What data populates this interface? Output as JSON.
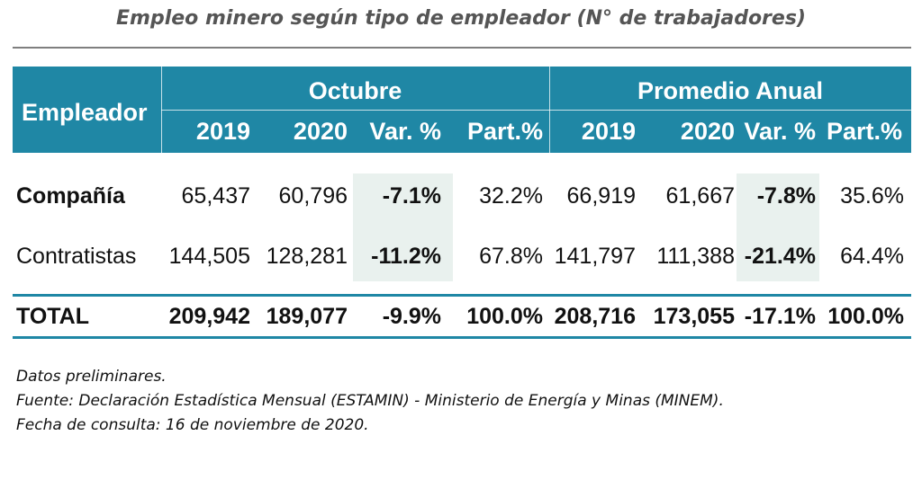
{
  "title": "Empleo minero según tipo de empleador (N° de trabajadores)",
  "header": {
    "row_label": "Empleador",
    "groups": [
      "Octubre",
      "Promedio Anual"
    ],
    "columns": [
      "2019",
      "2020",
      "Var. %",
      "Part.%",
      "2019",
      "2020",
      "Var. %",
      "Part.%"
    ]
  },
  "chart_data": {
    "type": "table",
    "title": "Empleo minero según tipo de empleador (N° de trabajadores)",
    "column_groups": [
      {
        "name": "Octubre",
        "columns": [
          "2019",
          "2020",
          "Var. %",
          "Part.%"
        ]
      },
      {
        "name": "Promedio Anual",
        "columns": [
          "2019",
          "2020",
          "Var. %",
          "Part.%"
        ]
      }
    ],
    "rows": [
      {
        "label": "Compañía",
        "values": [
          "65,437",
          "60,796",
          "-7.1%",
          "32.2%",
          "66,919",
          "61,667",
          "-7.8%",
          "35.6%"
        ]
      },
      {
        "label": "Contratistas",
        "values": [
          "144,505",
          "128,281",
          "-11.2%",
          "67.8%",
          "141,797",
          "111,388",
          "-21.4%",
          "64.4%"
        ]
      },
      {
        "label": "TOTAL",
        "values": [
          "209,942",
          "189,077",
          "-9.9%",
          "100.0%",
          "208,716",
          "173,055",
          "-17.1%",
          "100.0%"
        ]
      }
    ],
    "highlighted_columns": [
      "Var. %"
    ]
  },
  "notes": [
    "Datos preliminares.",
    "Fuente: Declaración Estadística Mensual (ESTAMIN) - Ministerio de Energía y Minas (MINEM).",
    "Fecha de consulta: 16 de noviembre de 2020."
  ],
  "colors": {
    "header_bg": "#1f87a5",
    "highlight_bg": "#e9f1ee",
    "title_text": "#555555"
  }
}
